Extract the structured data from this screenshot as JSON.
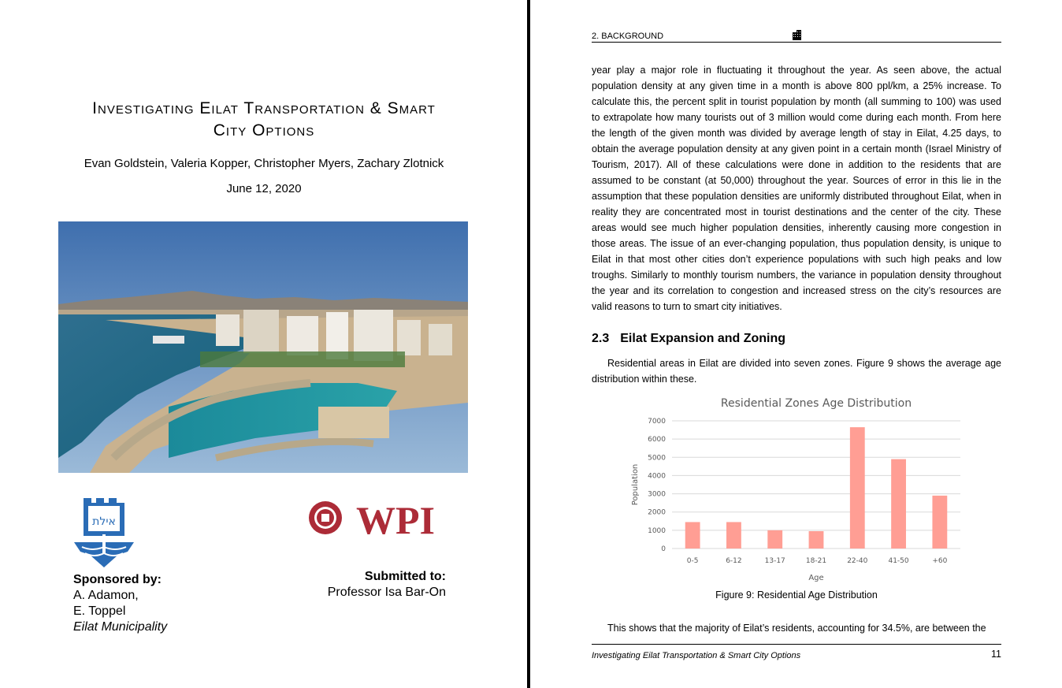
{
  "cover": {
    "title_line1": "Investigating Eilat Transportation & Smart",
    "title_line2": "City Options",
    "authors": "Evan Goldstein, Valeria Kopper, Christopher Myers, Zachary Zlotnick",
    "date": "June 12, 2020",
    "sponsor_heading": "Sponsored by:",
    "sponsor_name1": "A. Adamon,",
    "sponsor_name2": "E. Toppel",
    "sponsor_org": "Eilat Municipality",
    "submitted_heading": "Submitted to:",
    "submitted_name": "Professor Isa Bar-On",
    "wpi_logo_text": "WPI",
    "eilat_logo_text": "אילת"
  },
  "page": {
    "header_label": "2.  BACKGROUND",
    "header_icon": "building-icon",
    "paragraph1": "year play a major role in fluctuating it throughout the year.  As seen above, the actual population density at any given time in a month is above 800 ppl/km, a 25% increase. To calculate this, the percent split in tourist population by month (all summing to 100) was used to extrapolate how many tourists out of 3 million would come during each month. From here the length of the given month was divided by average length of stay in Eilat, 4.25 days, to obtain the average population density at any given point in a certain month (Israel Ministry of Tourism, 2017).  All of these calculations were done in addition to the residents that are assumed to be constant (at 50,000) throughout the year.  Sources of error in this lie in the assumption that these population densities are uniformly distributed throughout Eilat, when in reality they are concentrated most in tourist destinations and the center of the city.  These areas would see much higher population densities, inherently causing more congestion in those areas. The issue of an ever-changing population, thus population density, is unique to Eilat in that most other cities don’t experience populations with such high peaks and low troughs. Similarly to monthly tourism numbers, the variance in population density throughout the year and its correlation to congestion and increased stress on the city’s resources are valid reasons to turn to smart city initiatives.",
    "section_number": "2.3",
    "section_title": "Eilat Expansion and Zoning",
    "paragraph2": "Residential areas in Eilat are divided into seven zones.  Figure 9 shows the average age distribution within these.",
    "caption": "Figure 9: Residential Age Distribution",
    "paragraph3": "This shows that the majority of Eilat’s residents, accounting for 34.5%, are between the",
    "footer_title": "Investigating Eilat Transportation & Smart City Options",
    "page_number": "11"
  },
  "chart_data": {
    "type": "bar",
    "title": "Residential Zones Age Distribution",
    "xlabel": "Age",
    "ylabel": "Population",
    "categories": [
      "0-5",
      "6-12",
      "13-17",
      "18-21",
      "22-40",
      "41-50",
      "+60"
    ],
    "values": [
      1450,
      1450,
      1000,
      950,
      6650,
      4900,
      2900
    ],
    "ylim": [
      0,
      7000
    ],
    "yticks": [
      0,
      1000,
      2000,
      3000,
      4000,
      5000,
      6000,
      7000
    ],
    "grid": true,
    "bar_color": "#ff9e94"
  }
}
